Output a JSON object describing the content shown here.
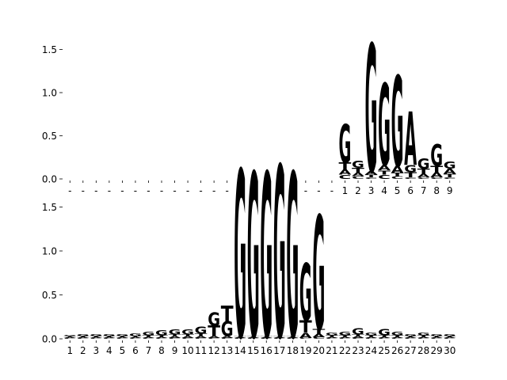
{
  "colors": {
    "A": "#008000",
    "C": "#0000cc",
    "G": "#ffa500",
    "T": "#cc0000"
  },
  "chart_data": [
    {
      "type": "sequence_logo",
      "title": "",
      "xlabel": "",
      "ylabel": "",
      "ylim": [
        0,
        1.6
      ],
      "yticks": [
        "0.0",
        "0.5",
        "1.0",
        "1.5"
      ],
      "positions": [
        "-",
        "-",
        "-",
        "-",
        "-",
        "-",
        "-",
        "-",
        "-",
        "-",
        "-",
        "-",
        "-",
        "-",
        "-",
        "-",
        "-",
        "-",
        "-",
        "-",
        "-",
        "1",
        "2",
        "3",
        "4",
        "5",
        "6",
        "7",
        "8",
        "9"
      ],
      "heights": [
        {
          "A": 0,
          "C": 0,
          "G": 0,
          "T": 0
        },
        {
          "A": 0,
          "C": 0,
          "G": 0,
          "T": 0
        },
        {
          "A": 0,
          "C": 0,
          "G": 0,
          "T": 0
        },
        {
          "A": 0,
          "C": 0,
          "G": 0,
          "T": 0
        },
        {
          "A": 0,
          "C": 0,
          "G": 0,
          "T": 0
        },
        {
          "A": 0,
          "C": 0,
          "G": 0,
          "T": 0
        },
        {
          "A": 0,
          "C": 0,
          "G": 0,
          "T": 0
        },
        {
          "A": 0,
          "C": 0,
          "G": 0,
          "T": 0
        },
        {
          "A": 0,
          "C": 0,
          "G": 0,
          "T": 0
        },
        {
          "A": 0,
          "C": 0,
          "G": 0,
          "T": 0
        },
        {
          "A": 0,
          "C": 0,
          "G": 0,
          "T": 0
        },
        {
          "A": 0,
          "C": 0,
          "G": 0,
          "T": 0
        },
        {
          "A": 0,
          "C": 0,
          "G": 0,
          "T": 0
        },
        {
          "A": 0,
          "C": 0,
          "G": 0,
          "T": 0
        },
        {
          "A": 0,
          "C": 0,
          "G": 0,
          "T": 0
        },
        {
          "A": 0,
          "C": 0,
          "G": 0,
          "T": 0
        },
        {
          "A": 0,
          "C": 0,
          "G": 0,
          "T": 0
        },
        {
          "A": 0,
          "C": 0,
          "G": 0,
          "T": 0
        },
        {
          "A": 0,
          "C": 0,
          "G": 0,
          "T": 0
        },
        {
          "A": 0,
          "C": 0,
          "G": 0,
          "T": 0
        },
        {
          "A": 0,
          "C": 0,
          "G": 0,
          "T": 0
        },
        {
          "C": 0.05,
          "T": 0.08,
          "A": 0.06,
          "G": 0.45
        },
        {
          "C": 0.03,
          "A": 0.04,
          "T": 0.06,
          "G": 0.08
        },
        {
          "C": 0.02,
          "T": 0.03,
          "A": 0.04,
          "G": 1.48
        },
        {
          "C": 0.05,
          "T": 0.05,
          "A": 0.06,
          "G": 0.95
        },
        {
          "C": 0.03,
          "T": 0.04,
          "A": 0.08,
          "G": 1.05
        },
        {
          "C": 0.02,
          "T": 0.06,
          "G": 0.08,
          "A": 0.62
        },
        {
          "C": 0.02,
          "A": 0.04,
          "T": 0.06,
          "G": 0.12
        },
        {
          "C": 0.02,
          "A": 0.06,
          "T": 0.07,
          "G": 0.25
        },
        {
          "C": 0.02,
          "T": 0.04,
          "A": 0.06,
          "G": 0.08
        }
      ]
    },
    {
      "type": "sequence_logo",
      "title": "",
      "xlabel": "",
      "ylabel": "",
      "ylim": [
        0,
        2.0
      ],
      "yticks": [
        "0.0",
        "0.5",
        "1.0",
        "1.5"
      ],
      "positions": [
        "1",
        "2",
        "3",
        "4",
        "5",
        "6",
        "7",
        "8",
        "9",
        "10",
        "11",
        "12",
        "13",
        "14",
        "15",
        "16",
        "17",
        "18",
        "19",
        "20",
        "21",
        "22",
        "23",
        "24",
        "25",
        "26",
        "27",
        "28",
        "29",
        "30"
      ],
      "heights": [
        {
          "C": 0.01,
          "A": 0.01,
          "T": 0.01,
          "G": 0.01
        },
        {
          "C": 0.01,
          "A": 0.01,
          "T": 0.01,
          "G": 0.02
        },
        {
          "C": 0.01,
          "A": 0.01,
          "T": 0.01,
          "G": 0.02
        },
        {
          "C": 0.01,
          "A": 0.01,
          "T": 0.01,
          "G": 0.02
        },
        {
          "C": 0.01,
          "A": 0.01,
          "T": 0.01,
          "G": 0.02
        },
        {
          "C": 0.01,
          "A": 0.01,
          "T": 0.01,
          "G": 0.03
        },
        {
          "C": 0.01,
          "A": 0.01,
          "T": 0.02,
          "G": 0.04
        },
        {
          "C": 0.01,
          "A": 0.01,
          "T": 0.02,
          "G": 0.06
        },
        {
          "C": 0.01,
          "A": 0.02,
          "T": 0.02,
          "G": 0.06
        },
        {
          "C": 0.01,
          "A": 0.02,
          "T": 0.02,
          "G": 0.06
        },
        {
          "C": 0.01,
          "A": 0.02,
          "T": 0.03,
          "G": 0.08
        },
        {
          "C": 0.01,
          "A": 0.02,
          "T": 0.12,
          "G": 0.15
        },
        {
          "C": 0.01,
          "A": 0.02,
          "T": 0.18,
          "G": 0.17
        },
        {
          "C": 0.01,
          "A": 0.01,
          "T": 0.01,
          "G": 1.9
        },
        {
          "C": 0.01,
          "A": 0.01,
          "T": 0.01,
          "G": 1.87
        },
        {
          "C": 0.01,
          "A": 0.01,
          "T": 0.01,
          "G": 1.87
        },
        {
          "C": 0.01,
          "A": 0.01,
          "T": 0.01,
          "G": 1.95
        },
        {
          "C": 0.01,
          "A": 0.01,
          "T": 0.01,
          "G": 1.87
        },
        {
          "C": 0.01,
          "A": 0.06,
          "T": 0.14,
          "G": 0.65
        },
        {
          "C": 0.02,
          "A": 0.04,
          "T": 0.05,
          "G": 1.3
        },
        {
          "C": 0.01,
          "A": 0.01,
          "T": 0.02,
          "G": 0.03
        },
        {
          "C": 0.01,
          "A": 0.01,
          "T": 0.02,
          "G": 0.04
        },
        {
          "C": 0.01,
          "A": 0.02,
          "T": 0.02,
          "G": 0.07
        },
        {
          "C": 0.01,
          "A": 0.01,
          "T": 0.02,
          "G": 0.03
        },
        {
          "C": 0.01,
          "A": 0.01,
          "T": 0.02,
          "G": 0.07
        },
        {
          "C": 0.01,
          "A": 0.01,
          "T": 0.02,
          "G": 0.04
        },
        {
          "C": 0.01,
          "A": 0.01,
          "T": 0.01,
          "G": 0.02
        },
        {
          "C": 0.01,
          "A": 0.01,
          "T": 0.02,
          "G": 0.03
        },
        {
          "C": 0.01,
          "A": 0.01,
          "T": 0.01,
          "G": 0.02
        },
        {
          "C": 0.01,
          "A": 0.01,
          "T": 0.01,
          "G": 0.02
        }
      ]
    }
  ]
}
